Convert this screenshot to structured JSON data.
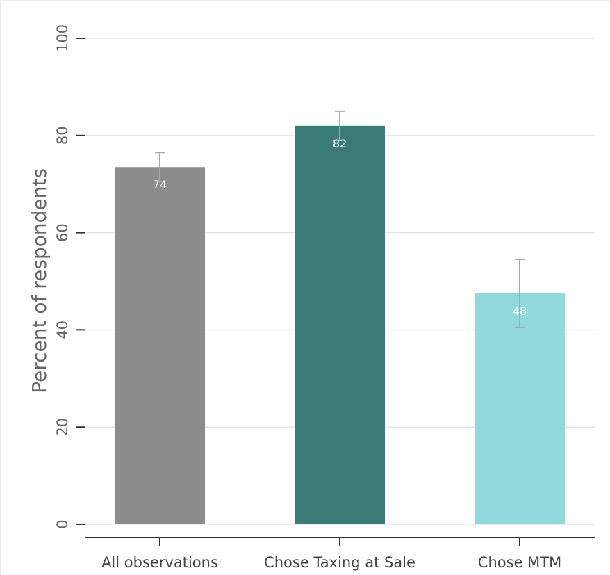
{
  "chart_data": {
    "type": "bar",
    "title": "",
    "xlabel": "",
    "ylabel": "Percent of respondents",
    "ylim": [
      0,
      100
    ],
    "yticks": [
      0,
      20,
      40,
      60,
      80,
      100
    ],
    "grid": "horizontal",
    "legend": "none",
    "categories": [
      "All observations",
      "Chose Taxing at Sale",
      "Chose MTM"
    ],
    "values": [
      73.5,
      82,
      47.5
    ],
    "value_labels": [
      "74",
      "82",
      "48"
    ],
    "error_bars": [
      {
        "low": 70.5,
        "high": 76.5
      },
      {
        "low": 79,
        "high": 85
      },
      {
        "low": 40.5,
        "high": 54.5
      }
    ],
    "colors": [
      "#8c8c8c",
      "#3a7b77",
      "#91d8dc"
    ],
    "grid_color": "#e6e6e6",
    "axis_color": "#333333",
    "error_bar_color": "#a8a8a8"
  }
}
